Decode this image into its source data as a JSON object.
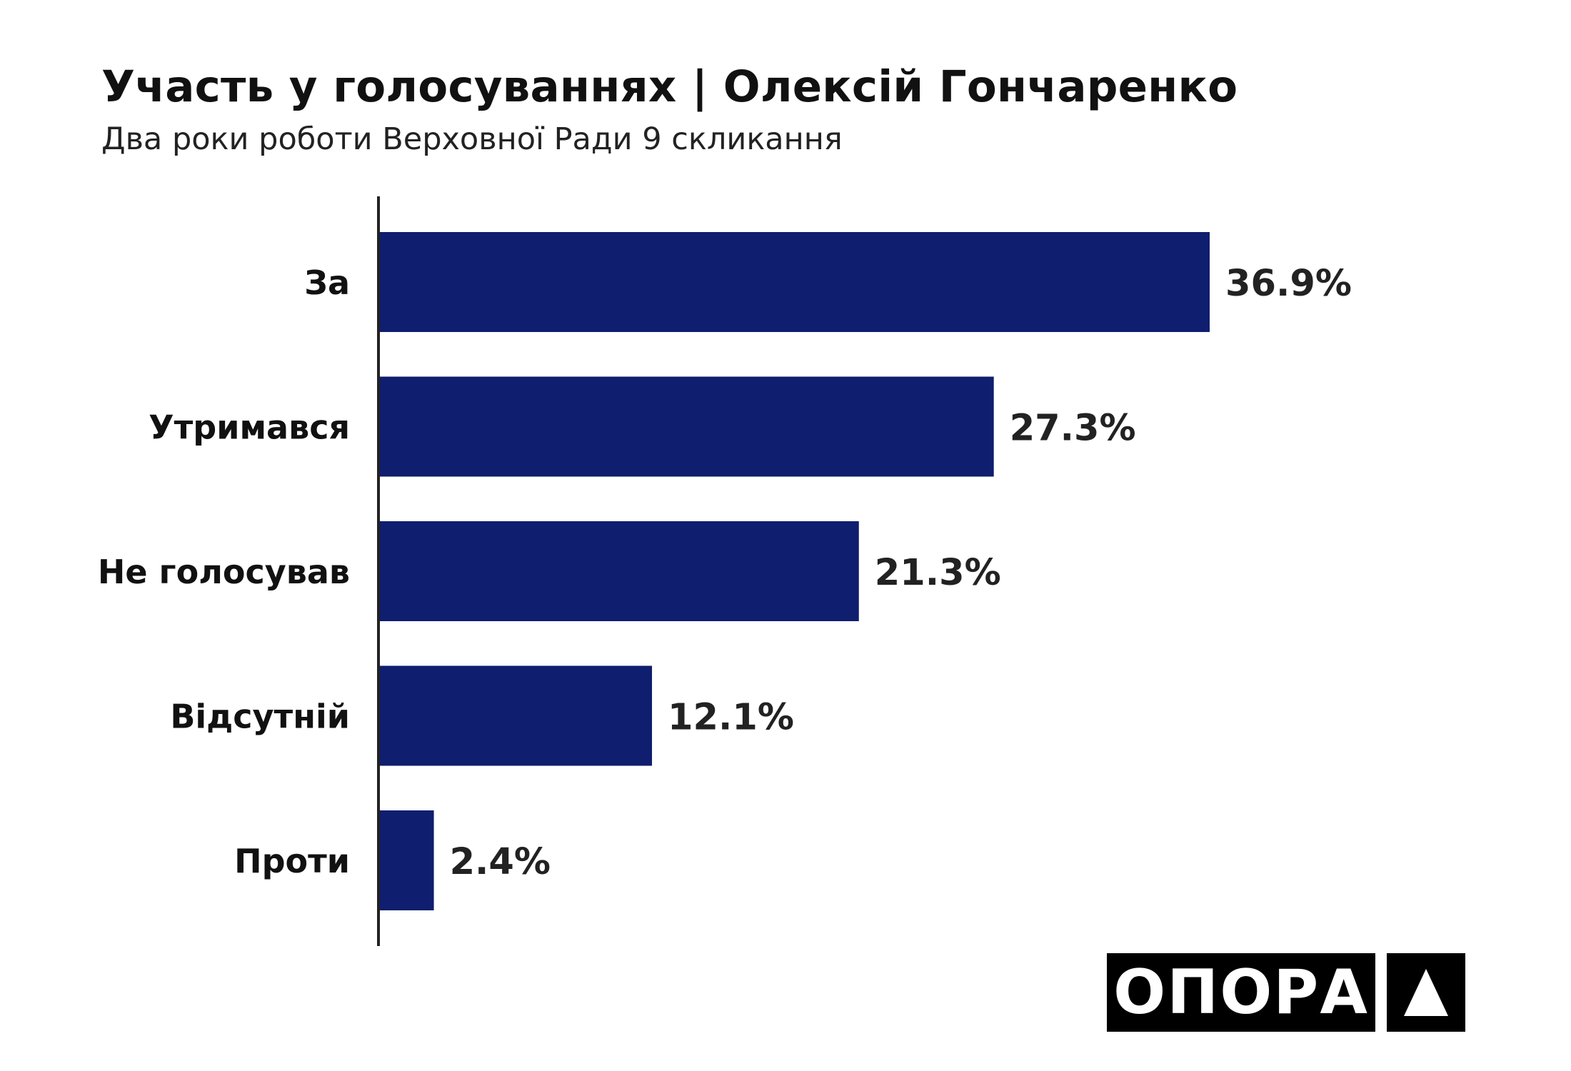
{
  "header": {
    "title": "Участь у голосуваннях | Олексій Гончаренко",
    "subtitle": "Два роки роботи Верховної Ради 9 скликання"
  },
  "chart_data": {
    "type": "bar",
    "orientation": "horizontal",
    "categories": [
      "За",
      "Утримався",
      "Не голосував",
      "Відсутній",
      "Проти"
    ],
    "values": [
      36.9,
      27.3,
      21.3,
      12.1,
      2.4
    ],
    "value_labels": [
      "36.9%",
      "27.3%",
      "21.3%",
      "12.1%",
      "2.4%"
    ],
    "xlim": [
      0,
      36.9
    ],
    "grid": false,
    "legend": "none",
    "bar_color": "#0f1e6e",
    "axis_color": "#222222"
  },
  "logo": {
    "text": "ОПОРА",
    "mark_icon": "triangle-icon",
    "background": "#000000",
    "foreground": "#ffffff"
  }
}
